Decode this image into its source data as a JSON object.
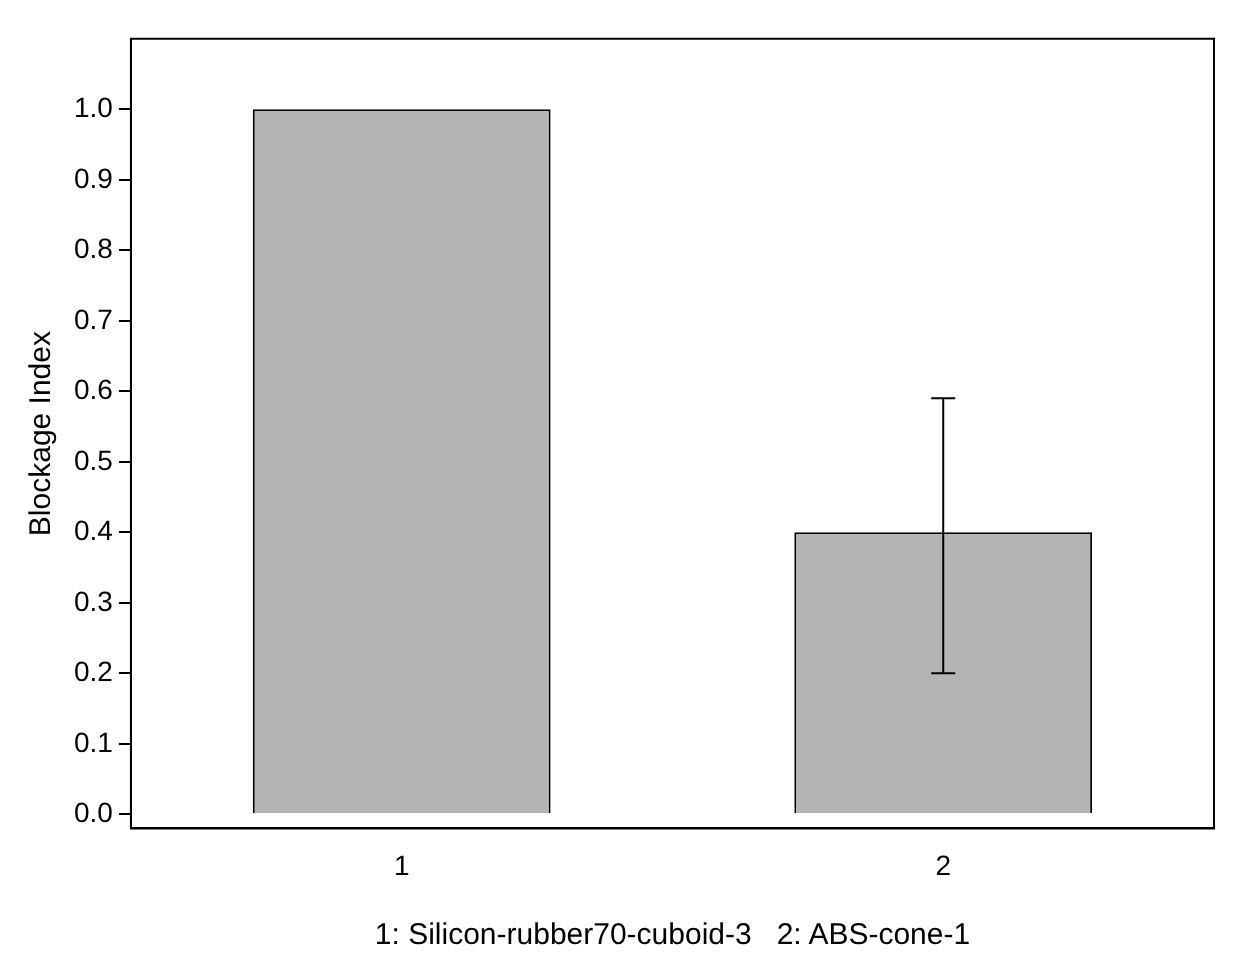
{
  "chart_data": {
    "type": "bar",
    "ylabel": "Blockage Index",
    "xlabel": "1: Silicon-rubber70-cuboid-3   2: ABS-cone-1",
    "categories": [
      "1",
      "2"
    ],
    "values": [
      1.0,
      0.4
    ],
    "errors": [
      null,
      [
        0.2,
        0.59
      ]
    ],
    "color": "#b4b4b4",
    "ylim": [
      -0.02,
      1.1
    ],
    "yticks": [
      {
        "value": 0,
        "label": "0.0"
      },
      {
        "value": 0.1,
        "label": "0.1"
      },
      {
        "value": 0.2,
        "label": "0.2"
      },
      {
        "value": 0.3,
        "label": "0.3"
      },
      {
        "value": 0.4,
        "label": "0.4"
      },
      {
        "value": 0.5,
        "label": "0.5"
      },
      {
        "value": 0.6,
        "label": "0.6"
      },
      {
        "value": 0.7,
        "label": "0.7"
      },
      {
        "value": 0.8,
        "label": "0.8"
      },
      {
        "value": 0.9,
        "label": "0.9"
      },
      {
        "value": 1.0,
        "label": "1.0"
      }
    ],
    "grid": false,
    "legend": false
  }
}
